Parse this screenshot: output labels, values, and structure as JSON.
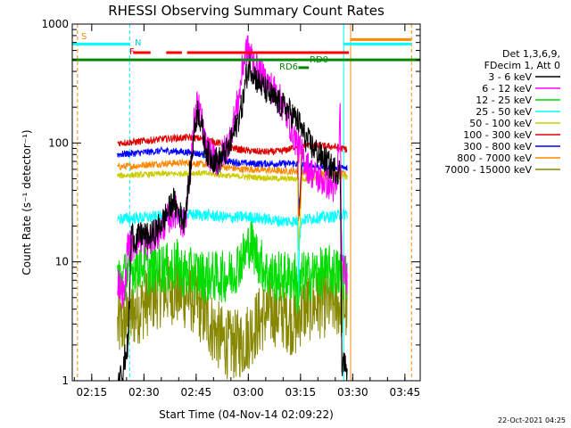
{
  "chart_data": {
    "type": "line",
    "title": "RHESSI Observing Summary Count Rates",
    "xlabel": "Start Time (04-Nov-14 02:09:22)",
    "ylabel": "Count Rate (s⁻¹ detector⁻¹)",
    "yscale": "log",
    "ylim": [
      1,
      1000
    ],
    "xlim_minutes": [
      0,
      100
    ],
    "x_ticks": [
      {
        "label": "02:15",
        "minute": 5.6
      },
      {
        "label": "02:30",
        "minute": 20.6
      },
      {
        "label": "02:45",
        "minute": 35.6
      },
      {
        "label": "03:00",
        "minute": 50.6
      },
      {
        "label": "03:15",
        "minute": 65.6
      },
      {
        "label": "03:30",
        "minute": 80.6
      },
      {
        "label": "03:45",
        "minute": 95.6
      }
    ],
    "y_ticks": [
      {
        "label": "1",
        "value": 1
      },
      {
        "label": "10",
        "value": 10
      },
      {
        "label": "100",
        "value": 100
      },
      {
        "label": "1000",
        "value": 1000
      }
    ],
    "legend": {
      "placement": "right",
      "header": [
        "Det 1,3,6,9,",
        "FDecim 1, Att 0"
      ],
      "entries": [
        {
          "label": "3 - 6 keV",
          "color": "#000000"
        },
        {
          "label": "6 - 12 keV",
          "color": "#ff00ff"
        },
        {
          "label": "12 - 25 keV",
          "color": "#00dd00"
        },
        {
          "label": "25 - 50 keV",
          "color": "#00ffff"
        },
        {
          "label": "50 - 100 keV",
          "color": "#cccc00"
        },
        {
          "label": "100 - 300 keV",
          "color": "#dd0000"
        },
        {
          "label": "300 - 800 keV",
          "color": "#0000ff"
        },
        {
          "label": "800 - 7000 keV",
          "color": "#ff8800"
        },
        {
          "label": "7000 - 15000 keV",
          "color": "#888800"
        }
      ]
    },
    "flag_labels": {
      "saa": "S",
      "night": "N",
      "flare": "F",
      "decimation": "RD6",
      "attenuator": "RD0"
    },
    "flag_bars": [
      {
        "name": "saa",
        "color": "#ff8800",
        "segments": [
          [
            80.0,
            97.5
          ]
        ],
        "y_value": 740
      },
      {
        "name": "night",
        "color": "#00ffff",
        "segments": [
          [
            0.0,
            16.5
          ],
          [
            78.0,
            97.5
          ]
        ],
        "y_value": 680
      },
      {
        "name": "flare",
        "color": "#ff0000",
        "segments": [
          [
            17.5,
            22.5
          ],
          [
            27.0,
            31.5
          ],
          [
            33.0,
            79.5
          ]
        ],
        "y_value": 575
      },
      {
        "name": "dec",
        "color": "#008800",
        "segments": [
          [
            0.0,
            100.0
          ]
        ],
        "y_value": 500
      },
      {
        "name": "rd",
        "color": "#008800",
        "segments": [
          [
            65.0,
            68.0
          ]
        ],
        "y_value": 430
      }
    ],
    "vlines": [
      {
        "minute": 1.5,
        "color": "#ff8800",
        "dashed": true
      },
      {
        "minute": 16.5,
        "color": "#00ffff",
        "dashed": true
      },
      {
        "minute": 78.0,
        "color": "#00ffff",
        "dashed": false
      },
      {
        "minute": 80.0,
        "color": "#ff8800",
        "dashed": false
      },
      {
        "minute": 97.5,
        "color": "#ff8800",
        "dashed": true
      }
    ],
    "series": [
      {
        "name": "3 - 6 keV",
        "color": "#000000",
        "noise": 0.12,
        "points": [
          [
            13,
            1
          ],
          [
            13.5,
            1
          ],
          [
            14,
            1.5
          ],
          [
            14.5,
            1
          ],
          [
            15,
            1.5
          ],
          [
            16,
            2
          ],
          [
            17,
            18
          ],
          [
            18,
            15
          ],
          [
            20,
            17
          ],
          [
            22,
            16
          ],
          [
            24,
            18
          ],
          [
            26,
            22
          ],
          [
            28,
            28
          ],
          [
            29,
            33
          ],
          [
            30,
            28
          ],
          [
            31,
            25
          ],
          [
            32,
            22
          ],
          [
            33,
            35
          ],
          [
            34,
            60
          ],
          [
            35,
            120
          ],
          [
            36,
            190
          ],
          [
            37,
            150
          ],
          [
            38,
            100
          ],
          [
            39,
            80
          ],
          [
            40,
            75
          ],
          [
            42,
            70
          ],
          [
            45,
            90
          ],
          [
            48,
            170
          ],
          [
            49,
            220
          ],
          [
            50,
            360
          ],
          [
            51,
            450
          ],
          [
            52,
            400
          ],
          [
            53,
            340
          ],
          [
            55,
            290
          ],
          [
            57,
            250
          ],
          [
            59,
            220
          ],
          [
            62,
            190
          ],
          [
            65,
            150
          ],
          [
            67,
            110
          ],
          [
            70,
            85
          ],
          [
            73,
            70
          ],
          [
            75,
            60
          ],
          [
            77,
            58
          ],
          [
            77.5,
            1.4
          ],
          [
            78,
            1.5
          ],
          [
            78.8,
            1.2
          ],
          [
            79,
            1
          ]
        ]
      },
      {
        "name": "6 - 12 keV",
        "color": "#ff00ff",
        "noise": 0.14,
        "points": [
          [
            13,
            7
          ],
          [
            14,
            6
          ],
          [
            15,
            5
          ],
          [
            16,
            15
          ],
          [
            17,
            13
          ],
          [
            18,
            15
          ],
          [
            20,
            16
          ],
          [
            22,
            14
          ],
          [
            24,
            17
          ],
          [
            26,
            20
          ],
          [
            28,
            24
          ],
          [
            30,
            27
          ],
          [
            32,
            20
          ],
          [
            33,
            30
          ],
          [
            34,
            60
          ],
          [
            35,
            150
          ],
          [
            36,
            210
          ],
          [
            37,
            170
          ],
          [
            38,
            100
          ],
          [
            40,
            75
          ],
          [
            42,
            70
          ],
          [
            45,
            100
          ],
          [
            48,
            250
          ],
          [
            49,
            450
          ],
          [
            50,
            600
          ],
          [
            51,
            600
          ],
          [
            52,
            480
          ],
          [
            54,
            380
          ],
          [
            56,
            320
          ],
          [
            58,
            280
          ],
          [
            60,
            220
          ],
          [
            62,
            160
          ],
          [
            64,
            110
          ],
          [
            66,
            80
          ],
          [
            68,
            60
          ],
          [
            70,
            52
          ],
          [
            72,
            48
          ],
          [
            74,
            45
          ],
          [
            75,
            42
          ],
          [
            76,
            40
          ],
          [
            77,
            180
          ],
          [
            77.5,
            8
          ],
          [
            78,
            9
          ],
          [
            79,
            7
          ]
        ]
      },
      {
        "name": "12 - 25 keV",
        "color": "#00dd00",
        "noise": 0.22,
        "points": [
          [
            13,
            8
          ],
          [
            14,
            7
          ],
          [
            16,
            8
          ],
          [
            18,
            9
          ],
          [
            20,
            10
          ],
          [
            22,
            8.5
          ],
          [
            24,
            9
          ],
          [
            26,
            9
          ],
          [
            28,
            8.5
          ],
          [
            30,
            9.5
          ],
          [
            32,
            8
          ],
          [
            34,
            8
          ],
          [
            36,
            8
          ],
          [
            38,
            7.5
          ],
          [
            40,
            7.5
          ],
          [
            42,
            7.5
          ],
          [
            44,
            7.5
          ],
          [
            46,
            8
          ],
          [
            48,
            10
          ],
          [
            50,
            12
          ],
          [
            51,
            15
          ],
          [
            52,
            13
          ],
          [
            54,
            10
          ],
          [
            56,
            8
          ],
          [
            58,
            7.5
          ],
          [
            60,
            7.5
          ],
          [
            62,
            7.5
          ],
          [
            64,
            7.5
          ],
          [
            65,
            5
          ],
          [
            66,
            7.5
          ],
          [
            68,
            7.5
          ],
          [
            70,
            8
          ],
          [
            72,
            8
          ],
          [
            74,
            8.5
          ],
          [
            76,
            8
          ],
          [
            78,
            7.5
          ],
          [
            79,
            8
          ]
        ]
      },
      {
        "name": "25 - 50 keV",
        "color": "#00ffff",
        "noise": 0.05,
        "points": [
          [
            13,
            23
          ],
          [
            20,
            23.5
          ],
          [
            25,
            24
          ],
          [
            30,
            24
          ],
          [
            35,
            25
          ],
          [
            40,
            24.5
          ],
          [
            45,
            23.5
          ],
          [
            50,
            24
          ],
          [
            55,
            23
          ],
          [
            60,
            22
          ],
          [
            64.8,
            22
          ],
          [
            65,
            5.2
          ],
          [
            65.3,
            16
          ],
          [
            66,
            22.5
          ],
          [
            70,
            23.5
          ],
          [
            75,
            24
          ],
          [
            79,
            25.5
          ]
        ]
      },
      {
        "name": "50 - 100 keV",
        "color": "#cccc00",
        "noise": 0.025,
        "points": [
          [
            13,
            53
          ],
          [
            20,
            54
          ],
          [
            25,
            55
          ],
          [
            30,
            55
          ],
          [
            35,
            56
          ],
          [
            40,
            55
          ],
          [
            45,
            53
          ],
          [
            50,
            52
          ],
          [
            55,
            51
          ],
          [
            60,
            50
          ],
          [
            64.8,
            50
          ],
          [
            65,
            13
          ],
          [
            65.4,
            20
          ],
          [
            66,
            50
          ],
          [
            70,
            50
          ],
          [
            75,
            51
          ],
          [
            79,
            52
          ]
        ]
      },
      {
        "name": "100 - 300 keV",
        "color": "#dd0000",
        "noise": 0.03,
        "points": [
          [
            13,
            100
          ],
          [
            18,
            102
          ],
          [
            22,
            105
          ],
          [
            26,
            108
          ],
          [
            30,
            110
          ],
          [
            34,
            111
          ],
          [
            38,
            108
          ],
          [
            42,
            100
          ],
          [
            45,
            93
          ],
          [
            48,
            88
          ],
          [
            52,
            85
          ],
          [
            56,
            84
          ],
          [
            60,
            85
          ],
          [
            63,
            90
          ],
          [
            64.8,
            96
          ],
          [
            65,
            23
          ],
          [
            65.5,
            30
          ],
          [
            66,
            96
          ],
          [
            70,
            95
          ],
          [
            75,
            93
          ],
          [
            79,
            88
          ]
        ]
      },
      {
        "name": "300 - 800 keV",
        "color": "#0000ff",
        "noise": 0.03,
        "points": [
          [
            13,
            80
          ],
          [
            18,
            82
          ],
          [
            22,
            84
          ],
          [
            26,
            86
          ],
          [
            30,
            85
          ],
          [
            34,
            83
          ],
          [
            38,
            80
          ],
          [
            42,
            75
          ],
          [
            45,
            70
          ],
          [
            48,
            68
          ],
          [
            52,
            67
          ],
          [
            56,
            67
          ],
          [
            60,
            67
          ],
          [
            64.8,
            67
          ],
          [
            65,
            26
          ],
          [
            65.5,
            40
          ],
          [
            66,
            65
          ],
          [
            70,
            64
          ],
          [
            75,
            62
          ],
          [
            79,
            61
          ]
        ]
      },
      {
        "name": "800 - 7000 keV",
        "color": "#ff8800",
        "noise": 0.03,
        "points": [
          [
            13,
            63
          ],
          [
            18,
            64
          ],
          [
            22,
            66
          ],
          [
            26,
            67
          ],
          [
            30,
            68
          ],
          [
            34,
            68
          ],
          [
            38,
            66
          ],
          [
            42,
            64
          ],
          [
            45,
            62
          ],
          [
            48,
            60
          ],
          [
            52,
            60
          ],
          [
            56,
            59
          ],
          [
            60,
            58
          ],
          [
            64.8,
            58
          ],
          [
            65,
            24
          ],
          [
            65.5,
            35
          ],
          [
            66,
            57
          ],
          [
            70,
            56
          ],
          [
            75,
            56
          ],
          [
            79,
            54
          ]
        ]
      },
      {
        "name": "7000 - 15000 keV",
        "color": "#888800",
        "noise": 0.3,
        "points": [
          [
            13,
            2.8
          ],
          [
            15,
            3
          ],
          [
            17,
            3.5
          ],
          [
            19,
            4
          ],
          [
            21,
            4.5
          ],
          [
            23,
            5
          ],
          [
            25,
            5.5
          ],
          [
            27,
            5.8
          ],
          [
            29,
            5.8
          ],
          [
            31,
            5.5
          ],
          [
            33,
            5.2
          ],
          [
            35,
            4.8
          ],
          [
            37,
            4
          ],
          [
            39,
            3.2
          ],
          [
            41,
            2.6
          ],
          [
            43,
            2.2
          ],
          [
            45,
            2
          ],
          [
            47,
            2
          ],
          [
            49,
            2.1
          ],
          [
            51,
            2.5
          ],
          [
            53,
            3
          ],
          [
            55,
            3.5
          ],
          [
            57,
            3.8
          ],
          [
            59,
            3.8
          ],
          [
            61,
            3.6
          ],
          [
            63,
            3.2
          ],
          [
            64.8,
            3
          ],
          [
            65,
            3.5
          ],
          [
            66,
            4
          ],
          [
            68,
            4.2
          ],
          [
            70,
            4.4
          ],
          [
            72,
            4.5
          ],
          [
            74,
            4.5
          ],
          [
            76,
            4.5
          ],
          [
            78,
            4.3
          ],
          [
            79,
            4
          ]
        ]
      }
    ]
  },
  "footer": {
    "timestamp": "22-Oct-2021 04:25"
  }
}
